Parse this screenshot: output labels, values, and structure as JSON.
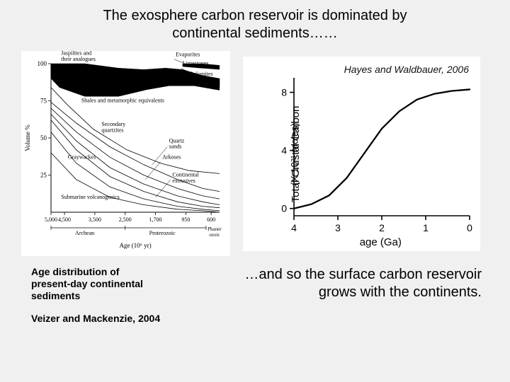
{
  "title_line1": "The exosphere carbon reservoir is dominated by",
  "title_line2": "continental sediments……",
  "left_caption_l1": "Age distribution of",
  "left_caption_l2": "present-day continental",
  "left_caption_l3": "sediments",
  "left_citation": "Veizer and Mackenzie, 2004",
  "right_caption_l1": "…and so the surface carbon reservoir",
  "right_caption_l2": "grows with the continents.",
  "left_chart": {
    "type": "area-stack-schematic",
    "y_label": "Volume %",
    "x_label": "Age (10⁶ yr)",
    "y_ticks": [
      25,
      50,
      75,
      100
    ],
    "x_ticks": [
      "5,000",
      "4,500",
      "3,500",
      "2,500",
      "1,700",
      "950",
      "600"
    ],
    "eras": [
      "Archean",
      "Proterozoic",
      "Phanerozoic"
    ],
    "band_labels": [
      "Jaspilites and their analogues",
      "Evaporites",
      "Limestones",
      "Dolomites",
      "Shales and metamorphic equivalents",
      "Secondary quartzites",
      "Quartz sands",
      "Arkoses",
      "Graywackes",
      "Continental extrusives",
      "Submarine volcanogenics"
    ],
    "colors": {
      "stroke": "#000000",
      "fill_dark": "#000000",
      "fill_mid": "#7a7a7a",
      "fill_light": "#ffffff",
      "background": "#ffffff"
    },
    "line_width": 0.8
  },
  "right_chart": {
    "type": "line",
    "citation": "Hayes and Waldbauer, 2006",
    "y_label": "Total Crustal Carbon",
    "y_sublabel": "(X 10²¹ moles)",
    "x_label": "age (Ga)",
    "x_ticks": [
      4,
      3,
      2,
      1,
      0
    ],
    "y_ticks": [
      0,
      4,
      8
    ],
    "xlim": [
      4,
      0
    ],
    "ylim": [
      -0.5,
      9
    ],
    "series": {
      "x": [
        4.0,
        3.6,
        3.2,
        2.8,
        2.4,
        2.0,
        1.6,
        1.2,
        0.8,
        0.4,
        0.0
      ],
      "y": [
        0.0,
        0.3,
        0.9,
        2.1,
        3.8,
        5.5,
        6.7,
        7.5,
        7.9,
        8.1,
        8.2
      ]
    },
    "colors": {
      "line": "#000000",
      "axis": "#000000",
      "background": "#ffffff"
    },
    "line_width": 2.3,
    "axis_width": 1.6,
    "font_size_axis": 15,
    "font_size_tick": 14
  }
}
